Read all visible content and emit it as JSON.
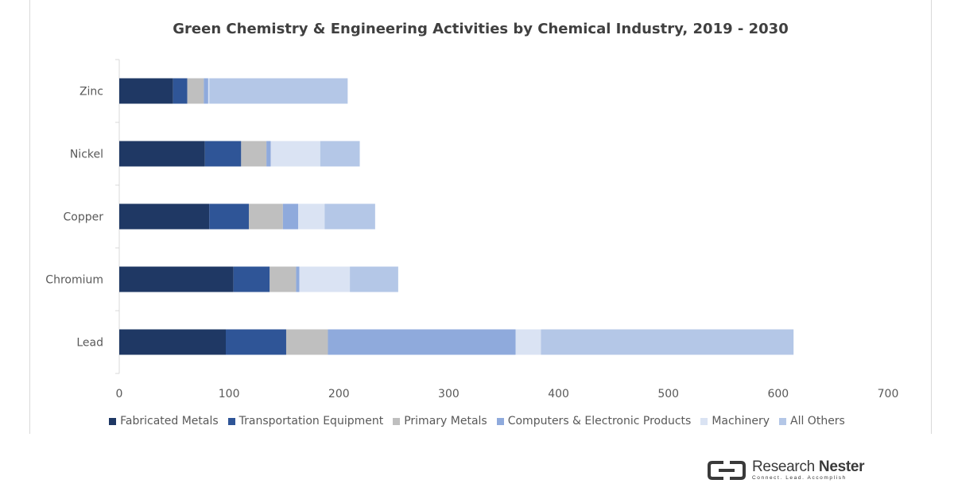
{
  "chart_data": {
    "type": "bar",
    "orientation": "horizontal",
    "stacked": true,
    "title": "Green Chemistry & Engineering Activities by Chemical Industry, 2019 - 2030",
    "categories": [
      "Zinc",
      "Nickel",
      "Copper",
      "Chromium",
      "Lead"
    ],
    "series": [
      {
        "name": "Fabricated Metals",
        "color": "#1f3864",
        "values": [
          49,
          78,
          82,
          104,
          97
        ]
      },
      {
        "name": "Transportation Equipment",
        "color": "#2f5597",
        "values": [
          13,
          33,
          36,
          33,
          55
        ]
      },
      {
        "name": "Primary Metals",
        "color": "#bfbfbf",
        "values": [
          15,
          23,
          31,
          24,
          38
        ]
      },
      {
        "name": "Computers & Electronic Products",
        "color": "#8faadc",
        "values": [
          4,
          4,
          14,
          3,
          171
        ]
      },
      {
        "name": "Machinery",
        "color": "#dae3f3",
        "values": [
          1,
          45,
          24,
          46,
          23
        ]
      },
      {
        "name": "All Others",
        "color": "#b4c7e7",
        "values": [
          126,
          36,
          46,
          44,
          230
        ]
      }
    ],
    "xlim": [
      0,
      700
    ],
    "xticks": [
      "0",
      "100",
      "200",
      "300",
      "400",
      "500",
      "600",
      "700"
    ],
    "grid": false,
    "legend_position": "bottom"
  },
  "branding": {
    "brand_word1": "Research",
    "brand_word2": "Nester",
    "tagline": "Connect. Lead. Accomplish"
  }
}
